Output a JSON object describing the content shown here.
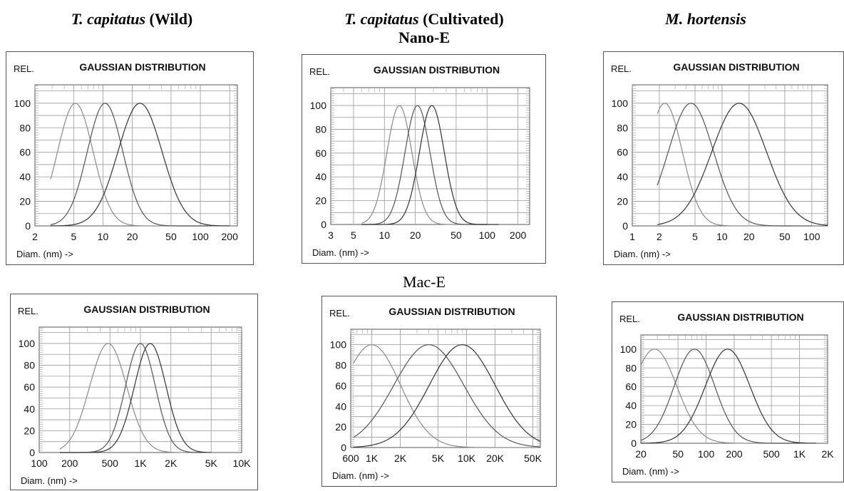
{
  "headers": {
    "col1": {
      "species": "T. capitatus",
      "note": "(Wild)"
    },
    "col2": {
      "species": "T. capitatus",
      "note": "(Cultivated)"
    },
    "col3": {
      "species": "M. hortensis",
      "note": ""
    }
  },
  "row_labels": {
    "nano": "Nano-E",
    "mac": "Mac-E"
  },
  "chart_data": [
    {
      "type": "line",
      "id": "wild-nano",
      "title": "GAUSSIAN DISTRIBUTION",
      "ylabel": "REL.",
      "xlabel": "Diam. (nm) ->",
      "xscale": "log",
      "xlim": [
        2,
        240
      ],
      "ylim": [
        0,
        115
      ],
      "xticks": [
        {
          "v": 2,
          "t": "2"
        },
        {
          "v": 5,
          "t": "5"
        },
        {
          "v": 10,
          "t": "10"
        },
        {
          "v": 20,
          "t": "20"
        },
        {
          "v": 50,
          "t": "50"
        },
        {
          "v": 100,
          "t": "100"
        },
        {
          "v": 200,
          "t": "200"
        }
      ],
      "yticks": [
        0,
        20,
        40,
        60,
        80,
        100
      ],
      "series": [
        {
          "mu": 5.2,
          "sigma": 0.42,
          "xmin": 2.9,
          "xmax": 120
        },
        {
          "mu": 10.5,
          "sigma": 0.42,
          "xmin": 2.9,
          "xmax": 120
        },
        {
          "mu": 24,
          "sigma": 0.52,
          "xmin": 2.9,
          "xmax": 200
        }
      ]
    },
    {
      "type": "line",
      "id": "cult-nano",
      "title": "GAUSSIAN DISTRIBUTION",
      "ylabel": "REL.",
      "xlabel": "Diam. (nm) ->",
      "xscale": "log",
      "xlim": [
        3,
        260
      ],
      "ylim": [
        0,
        115
      ],
      "xticks": [
        {
          "v": 3,
          "t": "3"
        },
        {
          "v": 5,
          "t": "5"
        },
        {
          "v": 10,
          "t": "10"
        },
        {
          "v": 20,
          "t": "20"
        },
        {
          "v": 50,
          "t": "50"
        },
        {
          "v": 100,
          "t": "100"
        },
        {
          "v": 200,
          "t": "200"
        }
      ],
      "yticks": [
        0,
        20,
        40,
        60,
        80,
        100
      ],
      "series": [
        {
          "mu": 14,
          "sigma": 0.28,
          "xmin": 6,
          "xmax": 100
        },
        {
          "mu": 21,
          "sigma": 0.28,
          "xmin": 6,
          "xmax": 100
        },
        {
          "mu": 29,
          "sigma": 0.28,
          "xmin": 6,
          "xmax": 130
        }
      ]
    },
    {
      "type": "line",
      "id": "mel-nano",
      "title": "GAUSSIAN DISTRIBUTION",
      "ylabel": "REL.",
      "xlabel": "Diam. (nm) ->",
      "xscale": "log",
      "xlim": [
        1,
        150
      ],
      "ylim": [
        0,
        115
      ],
      "xticks": [
        {
          "v": 1,
          "t": "1"
        },
        {
          "v": 2,
          "t": "2"
        },
        {
          "v": 5,
          "t": "5"
        },
        {
          "v": 10,
          "t": "10"
        },
        {
          "v": 20,
          "t": "20"
        },
        {
          "v": 50,
          "t": "50"
        },
        {
          "v": 100,
          "t": "100"
        }
      ],
      "yticks": [
        0,
        20,
        40,
        60,
        80,
        100
      ],
      "series": [
        {
          "mu": 2.3,
          "sigma": 0.45,
          "xmin": 1.9,
          "xmax": 60
        },
        {
          "mu": 4.5,
          "sigma": 0.58,
          "xmin": 1.9,
          "xmax": 100
        },
        {
          "mu": 15.5,
          "sigma": 0.7,
          "xmin": 1.9,
          "xmax": 150
        }
      ]
    },
    {
      "type": "line",
      "id": "wild-mac",
      "title": "GAUSSIAN DISTRIBUTION",
      "ylabel": "REL.",
      "xlabel": "Diam. (nm) ->",
      "xscale": "log",
      "xlim": [
        100,
        10000
      ],
      "ylim": [
        0,
        115
      ],
      "xticks": [
        {
          "v": 100,
          "t": "100"
        },
        {
          "v": 200,
          "t": "200"
        },
        {
          "v": 500,
          "t": "500"
        },
        {
          "v": 1000,
          "t": "1K"
        },
        {
          "v": 2000,
          "t": "2K"
        },
        {
          "v": 5000,
          "t": "5K"
        },
        {
          "v": 10000,
          "t": "10K"
        }
      ],
      "yticks": [
        0,
        20,
        40,
        60,
        80,
        100
      ],
      "series": [
        {
          "mu": 480,
          "sigma": 0.42,
          "xmin": 160,
          "xmax": 4000
        },
        {
          "mu": 1000,
          "sigma": 0.34,
          "xmin": 160,
          "xmax": 4000
        },
        {
          "mu": 1250,
          "sigma": 0.36,
          "xmin": 160,
          "xmax": 5000
        }
      ]
    },
    {
      "type": "line",
      "id": "cult-mac",
      "title": "GAUSSIAN DISTRIBUTION",
      "ylabel": "REL.",
      "xlabel": "Diam. (nm) ->",
      "xscale": "log",
      "xlim": [
        600,
        60000
      ],
      "ylim": [
        0,
        115
      ],
      "xticks": [
        {
          "v": 600,
          "t": "600"
        },
        {
          "v": 1000,
          "t": "1K"
        },
        {
          "v": 2000,
          "t": "2K"
        },
        {
          "v": 5000,
          "t": "5K"
        },
        {
          "v": 10000,
          "t": "10K"
        },
        {
          "v": 20000,
          "t": "20K"
        },
        {
          "v": 50000,
          "t": "50K"
        }
      ],
      "yticks": [
        0,
        20,
        40,
        60,
        80,
        100
      ],
      "series": [
        {
          "mu": 1000,
          "sigma": 0.7,
          "xmin": 640,
          "xmax": 60000
        },
        {
          "mu": 4000,
          "sigma": 0.85,
          "xmin": 640,
          "xmax": 60000
        },
        {
          "mu": 9000,
          "sigma": 0.8,
          "xmin": 640,
          "xmax": 60000
        }
      ]
    },
    {
      "type": "line",
      "id": "mel-mac",
      "title": "GAUSSIAN DISTRIBUTION",
      "ylabel": "REL.",
      "xlabel": "Diam. (nm) ->",
      "xscale": "log",
      "xlim": [
        20,
        2000
      ],
      "ylim": [
        0,
        115
      ],
      "xticks": [
        {
          "v": 20,
          "t": "20"
        },
        {
          "v": 50,
          "t": "50"
        },
        {
          "v": 100,
          "t": "100"
        },
        {
          "v": 200,
          "t": "200"
        },
        {
          "v": 500,
          "t": "500"
        },
        {
          "v": 1000,
          "t": "1K"
        },
        {
          "v": 2000,
          "t": "2K"
        }
      ],
      "yticks": [
        0,
        20,
        40,
        60,
        80,
        100
      ],
      "series": [
        {
          "mu": 28,
          "sigma": 0.55,
          "xmin": 20,
          "xmax": 1000
        },
        {
          "mu": 75,
          "sigma": 0.5,
          "xmin": 20,
          "xmax": 1000
        },
        {
          "mu": 170,
          "sigma": 0.55,
          "xmin": 20,
          "xmax": 1500
        }
      ]
    }
  ]
}
